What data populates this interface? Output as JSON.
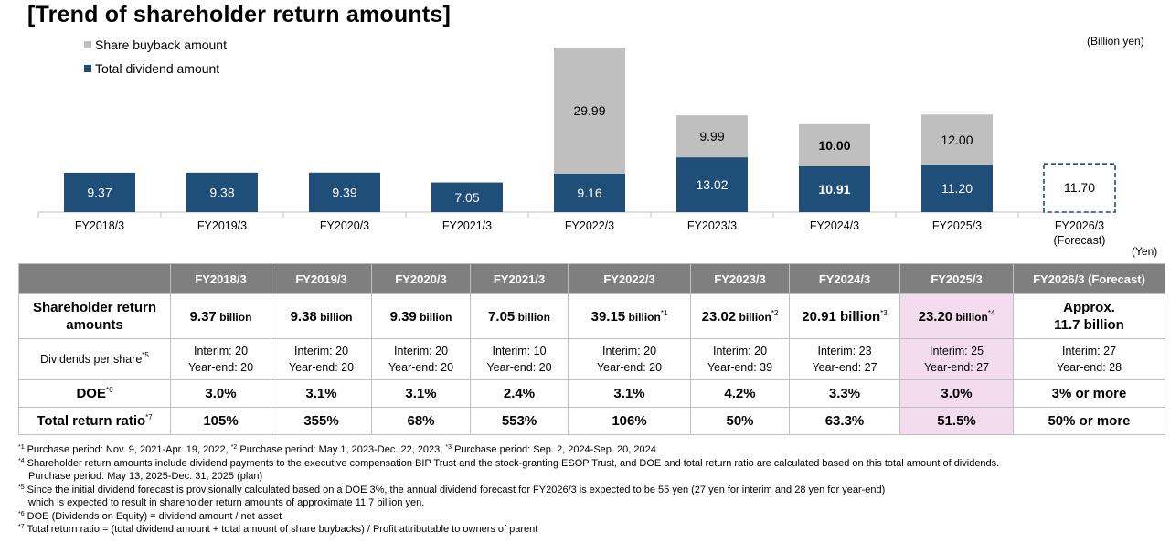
{
  "title": "[Trend of shareholder return amounts]",
  "unit_label": "(Billion yen)",
  "table_unit": "(Yen)",
  "colors": {
    "dividend": "#1f4e79",
    "buyback": "#bfbfbf",
    "header": "#7f7f7f",
    "highlight": "#f2dcee"
  },
  "chart_data": {
    "type": "bar",
    "stacked": true,
    "categories": [
      "FY2018/3",
      "FY2019/3",
      "FY2020/3",
      "FY2021/3",
      "FY2022/3",
      "FY2023/3",
      "FY2024/3",
      "FY2025/3",
      "FY2026/3"
    ],
    "category_sublabels": [
      "",
      "",
      "",
      "",
      "",
      "",
      "",
      "",
      "(Forecast)"
    ],
    "series": [
      {
        "name": "Total dividend amount",
        "values": [
          9.37,
          9.38,
          9.39,
          7.05,
          9.16,
          13.02,
          10.91,
          11.2,
          11.7
        ],
        "labels": [
          "9.37",
          "9.38",
          "9.39",
          "7.05",
          "9.16",
          "13.02",
          "10.91",
          "11.20",
          "11.70"
        ]
      },
      {
        "name": "Share buyback amount",
        "values": [
          0,
          0,
          0,
          0,
          29.99,
          9.99,
          10.0,
          12.0,
          0
        ],
        "labels": [
          "",
          "",
          "",
          "",
          "29.99",
          "9.99",
          "10.00",
          "12.00",
          ""
        ]
      }
    ],
    "bold_category": "FY2024/3",
    "forecast_category": "FY2026/3",
    "legend": [
      "Share buyback amount",
      "Total dividend amount"
    ],
    "legend_position": "top-left",
    "ylabel": "",
    "grid": false
  },
  "table": {
    "headers": [
      "",
      "FY2018/3",
      "FY2019/3",
      "FY2020/3",
      "FY2021/3",
      "FY2022/3",
      "FY2023/3",
      "FY2024/3",
      "FY2025/3",
      "FY2026/3 (Forecast)"
    ],
    "row_labels": {
      "amounts": "Shareholder return amounts",
      "dividends": "Dividends per share",
      "dividends_note": "*5",
      "doe": "DOE",
      "doe_note": "*6",
      "trr": "Total return ratio",
      "trr_note": "*7"
    },
    "amounts": [
      {
        "value": "9.37",
        "unit": " billion",
        "note": ""
      },
      {
        "value": "9.38",
        "unit": " billion",
        "note": ""
      },
      {
        "value": "9.39",
        "unit": " billion",
        "note": ""
      },
      {
        "value": "7.05",
        "unit": " billion",
        "note": ""
      },
      {
        "value": "39.15",
        "unit": " billion",
        "note": "*1"
      },
      {
        "value": "23.02",
        "unit": " billion",
        "note": "*2"
      },
      {
        "value": "20.91 billion",
        "unit": "",
        "note": "*3"
      },
      {
        "value": "23.20",
        "unit": " billion",
        "note": "*4"
      }
    ],
    "amount_forecast_line1": "Approx.",
    "amount_forecast_line2": "11.7 billion",
    "dividends": [
      {
        "interim": "Interim: 20",
        "yearend": "Year-end: 20"
      },
      {
        "interim": "Interim: 20",
        "yearend": "Year-end: 20"
      },
      {
        "interim": "Interim: 20",
        "yearend": "Year-end: 20"
      },
      {
        "interim": "Interim: 10",
        "yearend": "Year-end: 20"
      },
      {
        "interim": "Interim: 20",
        "yearend": "Year-end: 20"
      },
      {
        "interim": "Interim: 20",
        "yearend": "Year-end: 39"
      },
      {
        "interim": "Interim: 23",
        "yearend": "Year-end: 27"
      },
      {
        "interim": "Interim: 25",
        "yearend": "Year-end: 27"
      },
      {
        "interim": "Interim: 27",
        "yearend": "Year-end: 28"
      }
    ],
    "doe": [
      "3.0%",
      "3.1%",
      "3.1%",
      "2.4%",
      "3.1%",
      "4.2%",
      "3.3%",
      "3.0%",
      "3% or more"
    ],
    "trr": [
      "105%",
      "355%",
      "68%",
      "553%",
      "106%",
      "50%",
      "63.3%",
      "51.5%",
      "50% or more"
    ]
  },
  "notes": [
    {
      "parts": [
        {
          "sup": "*1",
          "text": " Purchase period: Nov. 9, 2021-Apr. 19, 2022, "
        },
        {
          "sup": "*2",
          "text": " Purchase period: May 1, 2023-Dec. 22, 2023, "
        },
        {
          "sup": "*3",
          "text": " Purchase period: Sep. 2, 2024-Sep. 20, 2024"
        }
      ]
    },
    {
      "parts": [
        {
          "sup": "*4",
          "text": " Shareholder return amounts  include dividend payments to the executive compensation BIP Trust and the stock-granting ESOP Trust, and DOE and total return ratio are calculated based on this total amount of dividends."
        }
      ]
    },
    {
      "indent": true,
      "parts": [
        {
          "sup": "",
          "text": "Purchase period: May 13, 2025-Dec. 31, 2025 (plan)"
        }
      ]
    },
    {
      "parts": [
        {
          "sup": "*5",
          "text": " Since the initial dividend forecast is provisionally calculated based on a DOE 3%, the annual dividend forecast for FY2026/3 is expected to be 55 yen (27 yen for interim and 28 yen for year-end)"
        }
      ]
    },
    {
      "indent": true,
      "parts": [
        {
          "sup": "",
          "text": "which is expected to result in shareholder return amounts of approximate 11.7 billion yen."
        }
      ]
    },
    {
      "parts": [
        {
          "sup": "*6",
          "text": " DOE (Dividends on Equity) = dividend amount / net asset"
        }
      ]
    },
    {
      "parts": [
        {
          "sup": "*7",
          "text": " Total return ratio = (total dividend amount + total amount of share buybacks) / Profit attributable to owners of parent"
        }
      ]
    }
  ]
}
